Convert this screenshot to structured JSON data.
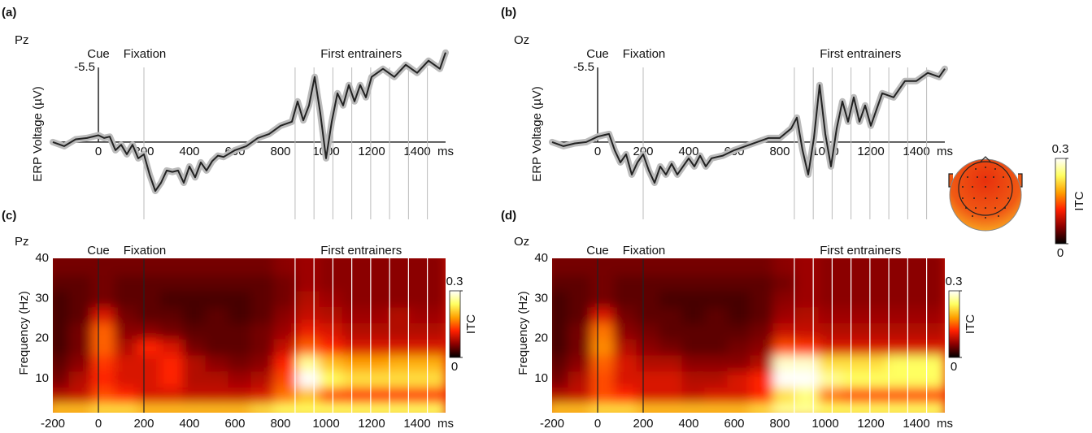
{
  "chart_data": [
    {
      "type": "line",
      "panel": "(a)",
      "channel": "Pz",
      "cue_label": "Cue",
      "fixation_label": "Fixation",
      "entrainer_label": "First entrainers",
      "ylabel": "ERP Voltage (µV)",
      "x_unit": "ms",
      "cue_ms": 0,
      "fixation_ms": 200,
      "entrainer_ms": [
        864,
        947,
        1030,
        1113,
        1196,
        1279,
        1362,
        1445
      ],
      "x": [
        -200,
        -150,
        -100,
        -50,
        0,
        25,
        50,
        75,
        100,
        125,
        150,
        175,
        200,
        225,
        250,
        275,
        300,
        325,
        350,
        375,
        400,
        425,
        450,
        475,
        500,
        525,
        550,
        600,
        650,
        700,
        750,
        800,
        850,
        875,
        900,
        925,
        950,
        975,
        1000,
        1025,
        1050,
        1075,
        1100,
        1125,
        1150,
        1175,
        1200,
        1250,
        1300,
        1350,
        1400,
        1450,
        1500,
        1525
      ],
      "values": [
        0,
        0.3,
        -0.2,
        -0.3,
        -0.5,
        -0.3,
        -0.4,
        0.6,
        0.2,
        0.9,
        0.2,
        1.2,
        0.9,
        2.4,
        3.6,
        3.0,
        2.1,
        2.2,
        2.1,
        3.0,
        1.8,
        2.6,
        1.5,
        2.1,
        1.4,
        1.0,
        1.1,
        0.6,
        0.3,
        -0.3,
        -0.6,
        -1.2,
        -1.5,
        -3.0,
        -1.6,
        -2.7,
        -4.8,
        -2.1,
        1.2,
        -1.5,
        -3.6,
        -2.7,
        -4.2,
        -3.0,
        -4.2,
        -3.3,
        -4.8,
        -5.4,
        -4.8,
        -5.7,
        -5.1,
        -6.0,
        -5.4,
        -6.6
      ],
      "color": "#222222",
      "band_color": "#bbbbbb",
      "xlim": [
        -200,
        1525
      ],
      "xticks": [
        0,
        200,
        400,
        600,
        800,
        1000,
        1200,
        1400
      ],
      "ylim": [
        4.2,
        -7
      ],
      "yticks": [
        -5.5
      ]
    },
    {
      "type": "line",
      "panel": "(b)",
      "channel": "Oz",
      "cue_label": "Cue",
      "fixation_label": "Fixation",
      "entrainer_label": "First entrainers",
      "ylabel": "ERP Voltage (µV)",
      "x_unit": "ms",
      "cue_ms": 0,
      "fixation_ms": 200,
      "entrainer_ms": [
        864,
        947,
        1030,
        1113,
        1196,
        1279,
        1362,
        1445
      ],
      "x": [
        -200,
        -150,
        -100,
        -50,
        0,
        25,
        50,
        75,
        100,
        125,
        150,
        175,
        200,
        225,
        250,
        275,
        300,
        325,
        350,
        375,
        400,
        425,
        450,
        475,
        500,
        525,
        550,
        600,
        650,
        700,
        750,
        800,
        850,
        875,
        900,
        925,
        950,
        975,
        1000,
        1025,
        1050,
        1075,
        1100,
        1125,
        1150,
        1175,
        1200,
        1250,
        1300,
        1350,
        1400,
        1450,
        1500,
        1525
      ],
      "values": [
        0,
        0.3,
        0.1,
        0,
        -0.4,
        -0.5,
        -0.6,
        0.6,
        1.5,
        0.9,
        2.4,
        1.5,
        0.9,
        2.1,
        3.0,
        1.8,
        2.4,
        1.6,
        2.4,
        1.8,
        1.2,
        1.8,
        1.0,
        1.8,
        1.2,
        1.1,
        1.0,
        0.6,
        0.3,
        0,
        -0.3,
        -0.3,
        -1.0,
        -1.8,
        0.6,
        2.4,
        -0.3,
        -4.2,
        -0.6,
        1.8,
        -1.0,
        -3.0,
        -1.5,
        -3.3,
        -1.5,
        -2.7,
        -1.2,
        -3.6,
        -3.3,
        -4.5,
        -4.5,
        -5.1,
        -4.8,
        -5.4
      ],
      "color": "#222222",
      "band_color": "#bbbbbb",
      "xlim": [
        -200,
        1525
      ],
      "xticks": [
        0,
        200,
        400,
        600,
        800,
        1000,
        1200,
        1400
      ],
      "ylim": [
        4.2,
        -7
      ],
      "yticks": [
        -5.5
      ]
    },
    {
      "type": "heatmap",
      "panel": "(c)",
      "channel": "Pz",
      "cue_label": "Cue",
      "fixation_label": "Fixation",
      "entrainer_label": "First entrainers",
      "ylabel": "Frequency (Hz)",
      "x_unit": "ms",
      "cue_ms": 0,
      "fixation_ms": 200,
      "entrainer_ms": [
        864,
        947,
        1030,
        1113,
        1196,
        1279,
        1362,
        1445
      ],
      "x": [
        -150,
        -50,
        50,
        150,
        250,
        350,
        450,
        550,
        650,
        750,
        850,
        950,
        1050,
        1150,
        1250,
        1350,
        1450
      ],
      "y": [
        3,
        7,
        11,
        15,
        19,
        23,
        27,
        31,
        35,
        39
      ],
      "z": [
        [
          0.2,
          0.2,
          0.22,
          0.22,
          0.2,
          0.2,
          0.2,
          0.2,
          0.2,
          0.22,
          0.24,
          0.24,
          0.24,
          0.24,
          0.24,
          0.24,
          0.24
        ],
        [
          0.08,
          0.09,
          0.14,
          0.12,
          0.1,
          0.1,
          0.09,
          0.09,
          0.09,
          0.1,
          0.16,
          0.2,
          0.14,
          0.13,
          0.13,
          0.13,
          0.13
        ],
        [
          0.05,
          0.08,
          0.12,
          0.1,
          0.1,
          0.12,
          0.08,
          0.08,
          0.07,
          0.08,
          0.14,
          0.3,
          0.24,
          0.22,
          0.22,
          0.22,
          0.22
        ],
        [
          0.04,
          0.06,
          0.13,
          0.1,
          0.1,
          0.12,
          0.08,
          0.06,
          0.05,
          0.06,
          0.12,
          0.26,
          0.2,
          0.18,
          0.18,
          0.19,
          0.19
        ],
        [
          0.03,
          0.05,
          0.15,
          0.08,
          0.12,
          0.1,
          0.05,
          0.04,
          0.04,
          0.05,
          0.09,
          0.15,
          0.12,
          0.1,
          0.1,
          0.1,
          0.1
        ],
        [
          0.03,
          0.05,
          0.15,
          0.06,
          0.06,
          0.05,
          0.04,
          0.04,
          0.04,
          0.05,
          0.07,
          0.11,
          0.1,
          0.08,
          0.08,
          0.08,
          0.08
        ],
        [
          0.03,
          0.04,
          0.1,
          0.05,
          0.04,
          0.04,
          0.03,
          0.04,
          0.03,
          0.04,
          0.06,
          0.09,
          0.08,
          0.07,
          0.07,
          0.08,
          0.07
        ],
        [
          0.03,
          0.04,
          0.05,
          0.04,
          0.04,
          0.03,
          0.03,
          0.03,
          0.03,
          0.04,
          0.05,
          0.08,
          0.07,
          0.06,
          0.06,
          0.06,
          0.06
        ],
        [
          0.04,
          0.04,
          0.05,
          0.04,
          0.04,
          0.04,
          0.04,
          0.04,
          0.04,
          0.04,
          0.05,
          0.07,
          0.06,
          0.06,
          0.06,
          0.06,
          0.06
        ],
        [
          0.05,
          0.05,
          0.05,
          0.05,
          0.05,
          0.05,
          0.05,
          0.05,
          0.05,
          0.05,
          0.06,
          0.07,
          0.06,
          0.06,
          0.06,
          0.06,
          0.06
        ]
      ],
      "colormap": [
        "#000000",
        "#8b0000",
        "#ff2000",
        "#ffa000",
        "#ffff60",
        "#ffffff"
      ],
      "clim": [
        0,
        0.3
      ],
      "cticks": [
        0,
        0.3
      ],
      "clabel": "ITC",
      "xlim": [
        -200,
        1525
      ],
      "xticks": [
        -200,
        0,
        200,
        400,
        600,
        800,
        1000,
        1200,
        1400
      ],
      "ylim": [
        1.5,
        40
      ],
      "yticks": [
        10,
        20,
        30,
        40
      ]
    },
    {
      "type": "heatmap",
      "panel": "(d)",
      "channel": "Oz",
      "cue_label": "Cue",
      "fixation_label": "Fixation",
      "entrainer_label": "First entrainers",
      "ylabel": "Frequency (Hz)",
      "x_unit": "ms",
      "cue_ms": 0,
      "fixation_ms": 200,
      "entrainer_ms": [
        864,
        947,
        1030,
        1113,
        1196,
        1279,
        1362,
        1445
      ],
      "x": [
        -150,
        -50,
        50,
        150,
        250,
        350,
        450,
        550,
        650,
        750,
        850,
        950,
        1050,
        1150,
        1250,
        1350,
        1450
      ],
      "y": [
        3,
        7,
        11,
        15,
        19,
        23,
        27,
        31,
        35,
        39
      ],
      "z": [
        [
          0.2,
          0.2,
          0.22,
          0.22,
          0.2,
          0.2,
          0.2,
          0.2,
          0.2,
          0.22,
          0.26,
          0.26,
          0.24,
          0.24,
          0.24,
          0.24,
          0.24
        ],
        [
          0.08,
          0.09,
          0.14,
          0.12,
          0.1,
          0.1,
          0.09,
          0.1,
          0.1,
          0.12,
          0.22,
          0.25,
          0.16,
          0.14,
          0.14,
          0.14,
          0.14
        ],
        [
          0.05,
          0.08,
          0.14,
          0.1,
          0.1,
          0.1,
          0.08,
          0.08,
          0.1,
          0.12,
          0.3,
          0.3,
          0.26,
          0.24,
          0.24,
          0.24,
          0.24
        ],
        [
          0.04,
          0.06,
          0.15,
          0.1,
          0.08,
          0.08,
          0.06,
          0.06,
          0.06,
          0.08,
          0.28,
          0.28,
          0.22,
          0.22,
          0.22,
          0.24,
          0.24
        ],
        [
          0.03,
          0.05,
          0.17,
          0.08,
          0.06,
          0.05,
          0.04,
          0.04,
          0.05,
          0.06,
          0.14,
          0.13,
          0.1,
          0.1,
          0.1,
          0.1,
          0.1
        ],
        [
          0.03,
          0.05,
          0.16,
          0.06,
          0.05,
          0.04,
          0.04,
          0.04,
          0.04,
          0.05,
          0.09,
          0.09,
          0.08,
          0.08,
          0.08,
          0.08,
          0.08
        ],
        [
          0.03,
          0.04,
          0.1,
          0.05,
          0.04,
          0.04,
          0.03,
          0.04,
          0.03,
          0.04,
          0.07,
          0.08,
          0.07,
          0.07,
          0.07,
          0.07,
          0.07
        ],
        [
          0.03,
          0.04,
          0.05,
          0.04,
          0.04,
          0.03,
          0.03,
          0.03,
          0.03,
          0.04,
          0.06,
          0.07,
          0.06,
          0.06,
          0.06,
          0.06,
          0.06
        ],
        [
          0.04,
          0.04,
          0.05,
          0.04,
          0.04,
          0.04,
          0.04,
          0.04,
          0.04,
          0.04,
          0.05,
          0.07,
          0.06,
          0.06,
          0.06,
          0.06,
          0.06
        ],
        [
          0.05,
          0.05,
          0.05,
          0.05,
          0.05,
          0.05,
          0.05,
          0.05,
          0.05,
          0.05,
          0.06,
          0.07,
          0.06,
          0.06,
          0.06,
          0.06,
          0.06
        ]
      ],
      "colormap": [
        "#000000",
        "#8b0000",
        "#ff2000",
        "#ffa000",
        "#ffff60",
        "#ffffff"
      ],
      "clim": [
        0,
        0.3
      ],
      "cticks": [
        0,
        0.3
      ],
      "clabel": "ITC",
      "xlim": [
        -200,
        1525
      ],
      "xticks": [
        -200,
        0,
        200,
        400,
        600,
        800,
        1000,
        1200,
        1400
      ],
      "ylim": [
        1.5,
        40
      ],
      "yticks": [
        10,
        20,
        30,
        40
      ]
    }
  ],
  "topomap": {
    "colormap": [
      "#000000",
      "#8b0000",
      "#ff2000",
      "#ffa000",
      "#ffff60",
      "#ffffff"
    ],
    "clim": [
      0,
      0.3
    ],
    "cticks": [
      0,
      0.3
    ],
    "clabel": "ITC"
  }
}
